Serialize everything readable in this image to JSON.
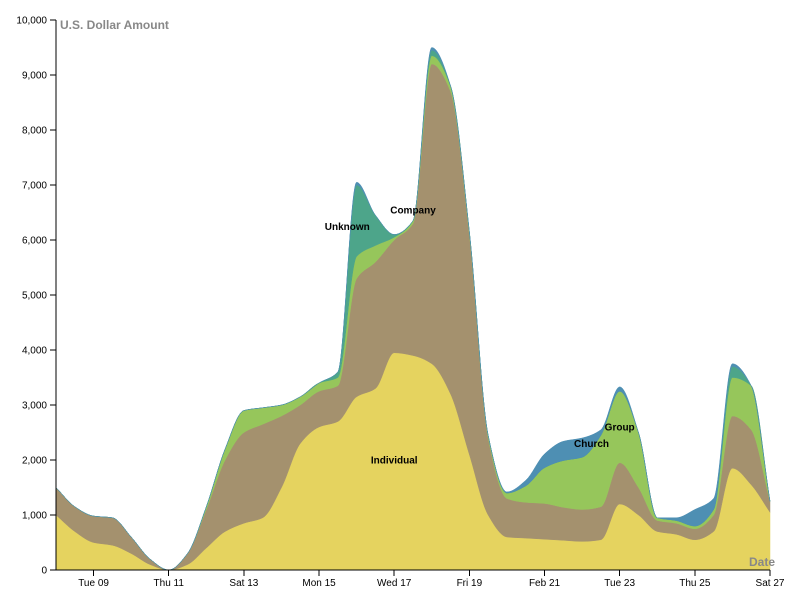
{
  "chart_data": {
    "type": "area",
    "stacked": true,
    "ylabel": "U.S. Dollar Amount",
    "xlabel": "Date",
    "ylim": [
      0,
      10000
    ],
    "xlim": [
      "2016-02-08",
      "2016-02-27"
    ],
    "y_ticks": [
      "0",
      "1,000",
      "2,000",
      "3,000",
      "4,000",
      "5,000",
      "6,000",
      "7,000",
      "8,000",
      "9,000",
      "10,000"
    ],
    "x_ticks": [
      {
        "date": "2016-02-09",
        "label": "Tue 09"
      },
      {
        "date": "2016-02-11",
        "label": "Thu 11"
      },
      {
        "date": "2016-02-13",
        "label": "Sat 13"
      },
      {
        "date": "2016-02-15",
        "label": "Mon 15"
      },
      {
        "date": "2016-02-17",
        "label": "Wed 17"
      },
      {
        "date": "2016-02-19",
        "label": "Fri 19"
      },
      {
        "date": "2016-02-21",
        "label": "Feb 21"
      },
      {
        "date": "2016-02-23",
        "label": "Tue 23"
      },
      {
        "date": "2016-02-25",
        "label": "Thu 25"
      },
      {
        "date": "2016-02-27",
        "label": "Sat 27"
      }
    ],
    "x": [
      "2016-02-08",
      "2016-02-08 12:00",
      "2016-02-09",
      "2016-02-09 12:00",
      "2016-02-10",
      "2016-02-10 12:00",
      "2016-02-11",
      "2016-02-11 12:00",
      "2016-02-12",
      "2016-02-12 12:00",
      "2016-02-13",
      "2016-02-13 12:00",
      "2016-02-14",
      "2016-02-14 12:00",
      "2016-02-15",
      "2016-02-15 12:00",
      "2016-02-16",
      "2016-02-16 12:00",
      "2016-02-17",
      "2016-02-17 12:00",
      "2016-02-18",
      "2016-02-18 12:00",
      "2016-02-19",
      "2016-02-19 12:00",
      "2016-02-20",
      "2016-02-20 12:00",
      "2016-02-21",
      "2016-02-21 12:00",
      "2016-02-22",
      "2016-02-22 12:00",
      "2016-02-23",
      "2016-02-23 12:00",
      "2016-02-24",
      "2016-02-24 12:00",
      "2016-02-25",
      "2016-02-25 12:00",
      "2016-02-26",
      "2016-02-26 12:00",
      "2016-02-27"
    ],
    "series": [
      {
        "name": "Individual",
        "color": "#e5d35f",
        "values": [
          1000,
          700,
          500,
          450,
          300,
          100,
          0,
          100,
          400,
          700,
          850,
          950,
          1500,
          2300,
          2600,
          2700,
          3150,
          3300,
          3950,
          3900,
          3750,
          3200,
          2100,
          1000,
          600,
          580,
          560,
          540,
          520,
          550,
          1200,
          1000,
          700,
          650,
          550,
          700,
          1850,
          1550,
          1050
        ]
      },
      {
        "name": "Company",
        "color": "#a4916e",
        "values": [
          500,
          450,
          480,
          500,
          300,
          100,
          0,
          200,
          700,
          1300,
          1650,
          1700,
          1300,
          700,
          650,
          650,
          2150,
          2300,
          2050,
          2400,
          5450,
          5500,
          4000,
          1400,
          700,
          650,
          650,
          600,
          580,
          600,
          750,
          500,
          200,
          200,
          200,
          300,
          950,
          1000,
          200
        ]
      },
      {
        "name": "Group",
        "color": "#96c65b",
        "values": [
          0,
          0,
          0,
          0,
          0,
          0,
          0,
          0,
          50,
          200,
          400,
          300,
          200,
          150,
          150,
          150,
          400,
          300,
          50,
          50,
          150,
          100,
          50,
          50,
          100,
          300,
          650,
          850,
          950,
          1300,
          1300,
          1000,
          50,
          50,
          50,
          100,
          700,
          800,
          0
        ]
      },
      {
        "name": "Unknown",
        "color": "#4da58a",
        "values": [
          0,
          0,
          0,
          0,
          0,
          0,
          0,
          0,
          0,
          0,
          0,
          0,
          0,
          0,
          0,
          100,
          1300,
          550,
          50,
          0,
          100,
          0,
          0,
          0,
          0,
          0,
          0,
          0,
          0,
          0,
          0,
          0,
          0,
          0,
          0,
          0,
          200,
          0,
          0
        ]
      },
      {
        "name": "Church",
        "color": "#4e8fb3",
        "values": [
          0,
          0,
          0,
          0,
          0,
          0,
          0,
          0,
          0,
          0,
          0,
          0,
          0,
          0,
          0,
          0,
          50,
          0,
          0,
          0,
          50,
          0,
          0,
          0,
          20,
          100,
          250,
          350,
          350,
          100,
          80,
          0,
          0,
          50,
          300,
          200,
          50,
          0,
          0
        ]
      }
    ],
    "series_labels": [
      {
        "text": "Individual",
        "date": "2016-02-17",
        "value": 2000
      },
      {
        "text": "Company",
        "date": "2016-02-17 12:00",
        "value": 6550
      },
      {
        "text": "Unknown",
        "date": "2016-02-15 18:00",
        "value": 6250
      },
      {
        "text": "Church",
        "date": "2016-02-22 06:00",
        "value": 2300
      },
      {
        "text": "Group",
        "date": "2016-02-23",
        "value": 2600
      }
    ]
  }
}
